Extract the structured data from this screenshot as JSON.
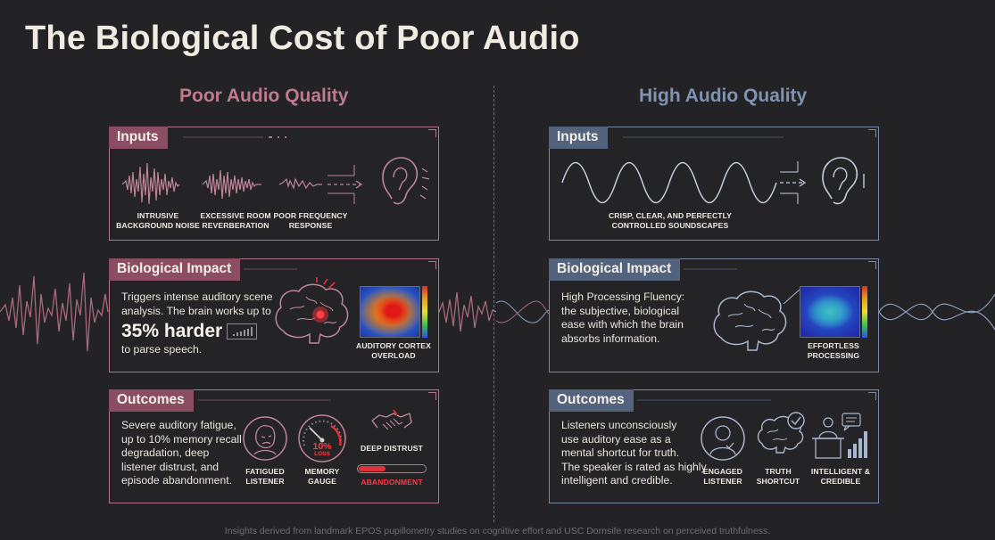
{
  "title": "The Biological Cost of Poor Audio",
  "poor": {
    "heading": "Poor Audio Quality",
    "inputs": {
      "tab": "Inputs",
      "captions": [
        [
          "INTRUSIVE",
          "BACKGROUND NOISE"
        ],
        [
          "EXCESSIVE ROOM",
          "REVERBERATION"
        ],
        [
          "POOR FREQUENCY",
          "RESPONSE"
        ]
      ]
    },
    "impact": {
      "tab": "Biological Impact",
      "text_1": "Triggers intense auditory scene",
      "text_2": "analysis. The brain works up to",
      "big": "35% harder",
      "text_3": "to parse speech.",
      "heat_caption_1": "AUDITORY CORTEX",
      "heat_caption_2": "OVERLOAD"
    },
    "outcomes": {
      "tab": "Outcomes",
      "lines": [
        "Severe auditory fatigue,",
        "up to 10% memory recall",
        "degradation, deep",
        "listener distrust, and",
        "episode abandonment."
      ],
      "icons": [
        {
          "l1": "FATIGUED",
          "l2": "LISTENER"
        },
        {
          "l1": "MEMORY",
          "l2": "GAUGE"
        }
      ],
      "gauge_value": "10%",
      "gauge_label": "LOSS",
      "distrust": "DEEP DISTRUST",
      "abandonment": "ABANDONMENT"
    }
  },
  "good": {
    "heading": "High Audio Quality",
    "inputs": {
      "tab": "Inputs",
      "caption_1": "CRISP, CLEAR, AND PERFECTLY",
      "caption_2": "CONTROLLED SOUNDSCAPES"
    },
    "impact": {
      "tab": "Biological Impact",
      "lines": [
        "High Processing Fluency:",
        "the subjective, biological",
        "ease with which the brain",
        "absorbs information."
      ],
      "heat_caption_1": "EFFORTLESS",
      "heat_caption_2": "PROCESSING"
    },
    "outcomes": {
      "tab": "Outcomes",
      "lines": [
        "Listeners unconsciously",
        "use auditory ease as a",
        "mental shortcut for truth.",
        "The speaker is rated as highly",
        "intelligent and credible."
      ],
      "icons": [
        {
          "l1": "ENGAGED",
          "l2": "LISTENER"
        },
        {
          "l1": "TRUTH",
          "l2": "SHORTCUT"
        },
        {
          "l1": "INTELLIGENT &",
          "l2": "CREDIBLE"
        }
      ]
    }
  },
  "footer": "Insights derived from landmark EPOS pupillometry studies on cognitive effort and USC Dornsife research on perceived truthfulness.",
  "colors": {
    "poor_accent": "#b27687",
    "good_accent": "#7b8aa6",
    "background": "#232325",
    "alert_red": "#e0303a"
  },
  "icons": [
    "noise-wave-icon",
    "ear-icon",
    "brain-icon",
    "heatmap-icon",
    "face-icon",
    "gauge-icon",
    "handshake-icon",
    "engaged-listener-icon",
    "brain-check-icon",
    "speaker-podium-icon"
  ]
}
